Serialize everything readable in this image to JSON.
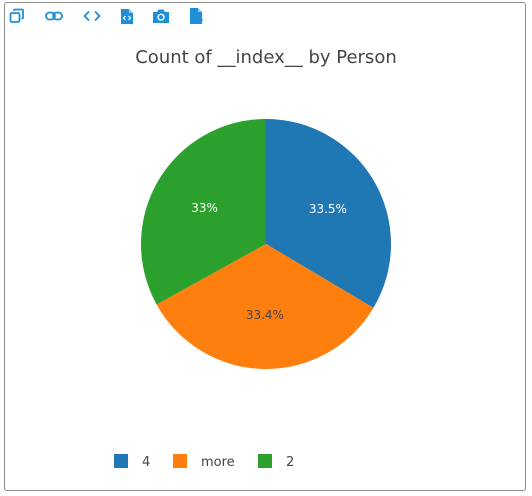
{
  "toolbar": {
    "icons": [
      "expand-icon",
      "link-icon",
      "code-icon",
      "code-file-icon",
      "camera-icon",
      "csv-file-icon"
    ],
    "csv_label": "csv",
    "color": "#1f8fd8"
  },
  "chart_data": {
    "type": "pie",
    "title": "Count of __index__ by Person",
    "categories": [
      "4",
      "more",
      "2"
    ],
    "values": [
      33.5,
      33.4,
      33
    ],
    "labels": [
      "33.5%",
      "33.4%",
      "33%"
    ],
    "colors": [
      "#1f77b4",
      "#ff7f0e",
      "#2ca02c"
    ],
    "label_colors": [
      "#ffffff",
      "#444444",
      "#ffffff"
    ],
    "legend": {
      "placement": "bottom",
      "entries": [
        "4",
        "more",
        "2"
      ]
    }
  }
}
